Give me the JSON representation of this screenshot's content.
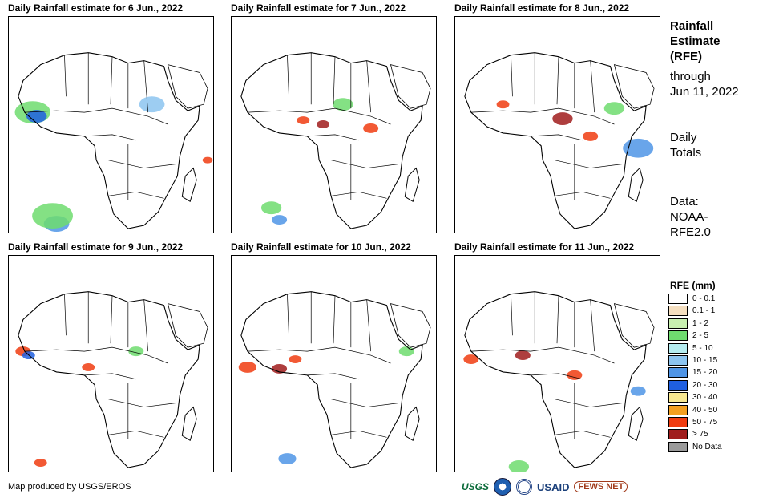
{
  "panels": [
    {
      "title": "Daily Rainfall estimate for 6 Jun., 2022"
    },
    {
      "title": "Daily Rainfall estimate for 7 Jun., 2022"
    },
    {
      "title": "Daily Rainfall estimate for 8 Jun., 2022"
    },
    {
      "title": "Daily Rainfall estimate for 9 Jun., 2022"
    },
    {
      "title": "Daily Rainfall estimate for 10 Jun., 2022"
    },
    {
      "title": "Daily Rainfall estimate for 11 Jun., 2022"
    }
  ],
  "side": {
    "heading_lines": [
      "Rainfall",
      "Estimate",
      "(RFE)"
    ],
    "through_lines": [
      "through",
      "Jun 11, 2022"
    ],
    "totals_lines": [
      "Daily",
      "Totals"
    ],
    "data_lines": [
      "Data:",
      "NOAA-",
      "RFE2.0"
    ]
  },
  "legend": {
    "title": "RFE (mm)",
    "items": [
      {
        "label": "0 - 0.1",
        "color": "#ffffff"
      },
      {
        "label": "0.1 - 1",
        "color": "#f5dfc0"
      },
      {
        "label": "1 - 2",
        "color": "#c8f0b0"
      },
      {
        "label": "2 - 5",
        "color": "#6fdc6f"
      },
      {
        "label": "5 - 10",
        "color": "#b4ecf0"
      },
      {
        "label": "10 - 15",
        "color": "#8cc4f0"
      },
      {
        "label": "15 - 20",
        "color": "#4f95e6"
      },
      {
        "label": "20 - 30",
        "color": "#1f5fe0"
      },
      {
        "label": "30 - 40",
        "color": "#f8e890"
      },
      {
        "label": "40 - 50",
        "color": "#f4a020"
      },
      {
        "label": "50 - 75",
        "color": "#f03c10"
      },
      {
        "label": "> 75",
        "color": "#a01c1c"
      },
      {
        "label": "No Data",
        "color": "#9a9a9a"
      }
    ]
  },
  "credit": "Map produced by USGS/EROS",
  "logos": {
    "usgs": "USGS",
    "usaid": "USAID",
    "fews": "FEWS NET"
  }
}
